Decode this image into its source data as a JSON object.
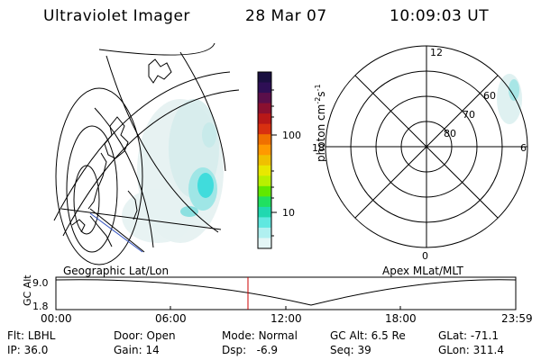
{
  "header": {
    "instrument": "Ultraviolet Imager",
    "date": "28 Mar 07",
    "time": "10:09:03 UT"
  },
  "geo_panel": {
    "caption": "Geographic Lat/Lon"
  },
  "colorbar": {
    "label": "photon cm",
    "label_exp1": "-2",
    "label_mid": "s",
    "label_exp2": "-1",
    "ticks": [
      "100",
      "10"
    ],
    "colors": [
      "#1a1040",
      "#2e0f55",
      "#5a0f4a",
      "#8a1030",
      "#b81818",
      "#d83010",
      "#f07000",
      "#ff9900",
      "#f0c000",
      "#e8e800",
      "#b8f000",
      "#60e800",
      "#20e060",
      "#20d8b0",
      "#60e8e0",
      "#b0f0f0",
      "#e4f6f6"
    ]
  },
  "polar_panel": {
    "caption": "Apex  MLat/MLT",
    "mlt_labels": {
      "top": "12",
      "bottom": "0",
      "left": "18",
      "right": "6"
    },
    "lat_labels": [
      "60",
      "70",
      "80"
    ]
  },
  "timeline": {
    "axis_label": "GC Alt",
    "y_ticks": [
      "9.0",
      "1.8"
    ],
    "x_ticks": [
      "00:00",
      "06:00",
      "12:00",
      "18:00",
      "23:59"
    ],
    "marker_color": "#cc0000"
  },
  "status": {
    "row1": [
      {
        "label": "Flt:",
        "value": "LBHL"
      },
      {
        "label": "Door:",
        "value": "Open"
      },
      {
        "label": "Mode:",
        "value": "Normal"
      },
      {
        "label": "GC Alt:",
        "value": "6.5 Re"
      },
      {
        "label": "GLat:",
        "value": "-71.1"
      }
    ],
    "row2": [
      {
        "label": "IP:",
        "value": "36.0"
      },
      {
        "label": "Gain:",
        "value": "14"
      },
      {
        "label": "Dsp:",
        "value": "-6.9"
      },
      {
        "label": "Seq:",
        "value": "39"
      },
      {
        "label": "GLon:",
        "value": "311.4"
      }
    ]
  }
}
